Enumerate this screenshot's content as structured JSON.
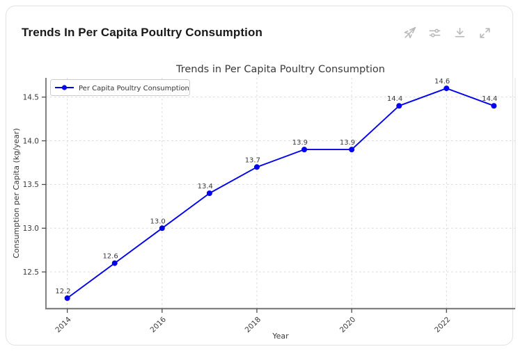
{
  "header": {
    "title": "Trends In Per Capita Poultry Consumption",
    "icons": [
      {
        "name": "navigation-off-icon"
      },
      {
        "name": "sliders-icon"
      },
      {
        "name": "download-icon"
      },
      {
        "name": "expand-icon"
      }
    ]
  },
  "chart_data": {
    "type": "line",
    "title": "Trends in Per Capita Poultry Consumption",
    "xlabel": "Year",
    "ylabel": "Consumption per Capita (kg/year)",
    "x": [
      2014,
      2015,
      2016,
      2017,
      2018,
      2019,
      2020,
      2021,
      2022,
      2023
    ],
    "series": [
      {
        "name": "Per Capita Poultry Consumption",
        "values": [
          12.2,
          12.6,
          13.0,
          13.4,
          13.7,
          13.9,
          13.9,
          14.4,
          14.6,
          14.4
        ],
        "color": "#0202f0",
        "marker": "circle",
        "point_labels": [
          "12.2",
          "12.6",
          "13.0",
          "13.4",
          "13.7",
          "13.9",
          "13.9",
          "14.4",
          "14.6",
          "14.4"
        ]
      }
    ],
    "xticks": [
      2014,
      2016,
      2018,
      2020,
      2022
    ],
    "yticks": [
      12.5,
      13.0,
      13.5,
      14.0,
      14.5
    ],
    "xlim": [
      2013.55,
      2023.45
    ],
    "ylim": [
      12.08,
      14.72
    ],
    "grid": true,
    "grid_style": "dashed",
    "legend_position": "upper-left",
    "colors": {
      "line": "#0202f0",
      "grid": "#d9d9d9",
      "text": "#3a3a3a",
      "left_spine": "#4d4d4d",
      "bottom_spine": "#808080",
      "right_spine": "#e3e3e3"
    }
  }
}
